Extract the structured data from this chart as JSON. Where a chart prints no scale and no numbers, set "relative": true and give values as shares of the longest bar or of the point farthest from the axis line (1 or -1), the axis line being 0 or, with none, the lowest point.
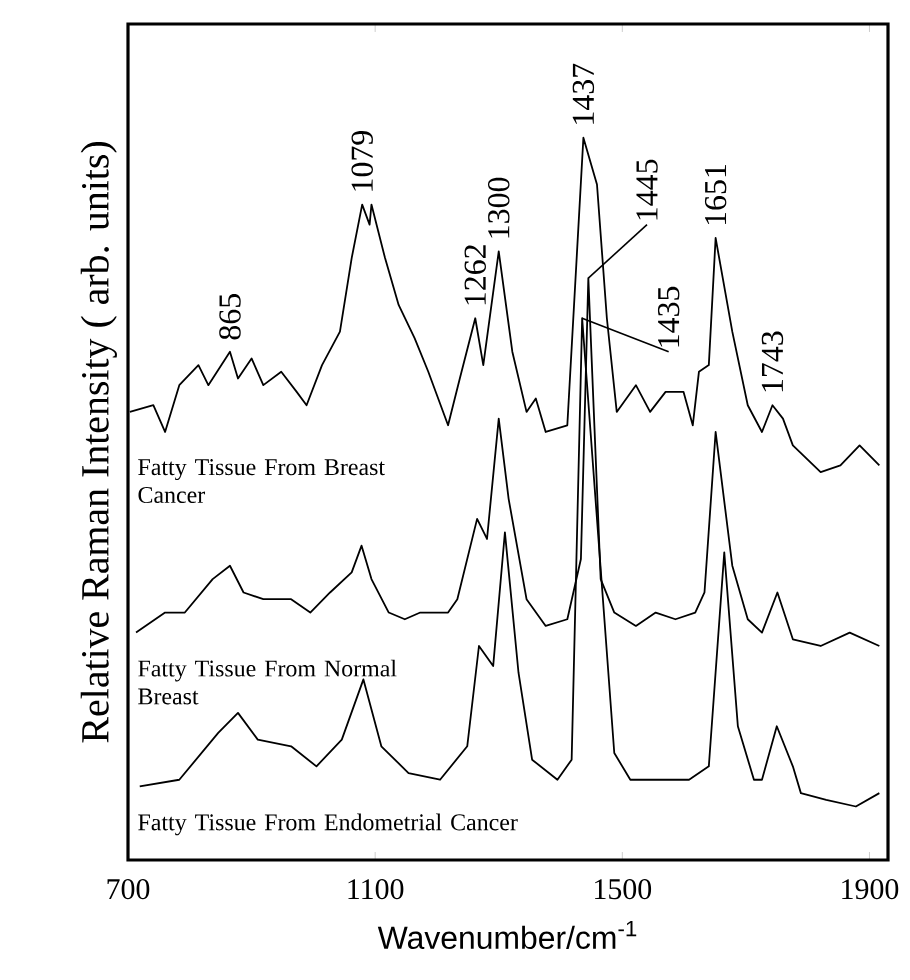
{
  "chart_data": {
    "type": "line",
    "relative": true,
    "xlabel": "Wavenumber/cm$^{-1}$",
    "ylabel": "Relative Raman Intensity ( arb. units)",
    "xlim": [
      700,
      1930
    ],
    "xticks": [
      700,
      1100,
      1500,
      1900
    ],
    "series": [
      {
        "name": "Fatty Tissue From Breast Cancer",
        "color": "#000000",
        "x": [
          703,
          741,
          760,
          783,
          814,
          830,
          865,
          878,
          900,
          919,
          948,
          973,
          989,
          1014,
          1043,
          1062,
          1079,
          1091,
          1094,
          1116,
          1138,
          1164,
          1186,
          1218,
          1237,
          1262,
          1275,
          1300,
          1322,
          1345,
          1360,
          1376,
          1411,
          1437,
          1459,
          1475,
          1491,
          1522,
          1545,
          1570,
          1599,
          1614,
          1624,
          1640,
          1651,
          1678,
          1703,
          1726,
          1743,
          1760,
          1776,
          1821,
          1853,
          1884,
          1916
        ],
        "values": [
          0.59,
          0.6,
          0.56,
          0.63,
          0.66,
          0.63,
          0.68,
          0.64,
          0.67,
          0.63,
          0.65,
          0.62,
          0.6,
          0.66,
          0.71,
          0.82,
          0.9,
          0.87,
          0.9,
          0.82,
          0.75,
          0.7,
          0.65,
          0.57,
          0.64,
          0.73,
          0.66,
          0.83,
          0.68,
          0.59,
          0.61,
          0.56,
          0.57,
          1.0,
          0.93,
          0.73,
          0.59,
          0.63,
          0.59,
          0.62,
          0.62,
          0.57,
          0.65,
          0.66,
          0.85,
          0.71,
          0.6,
          0.56,
          0.6,
          0.58,
          0.54,
          0.5,
          0.51,
          0.54,
          0.51
        ]
      },
      {
        "name": "Fatty Tissue From Normal Breast",
        "color": "#000000",
        "x": [
          713,
          760,
          792,
          837,
          865,
          887,
          919,
          964,
          995,
          1027,
          1062,
          1078,
          1094,
          1122,
          1148,
          1173,
          1218,
          1233,
          1265,
          1281,
          1300,
          1316,
          1345,
          1376,
          1411,
          1433,
          1445,
          1465,
          1487,
          1522,
          1554,
          1586,
          1618,
          1633,
          1651,
          1678,
          1703,
          1726,
          1751,
          1776,
          1821,
          1868,
          1916
        ],
        "values": [
          0.26,
          0.29,
          0.29,
          0.34,
          0.36,
          0.32,
          0.31,
          0.31,
          0.29,
          0.32,
          0.35,
          0.39,
          0.34,
          0.29,
          0.28,
          0.29,
          0.29,
          0.31,
          0.43,
          0.4,
          0.58,
          0.46,
          0.31,
          0.27,
          0.28,
          0.37,
          0.79,
          0.34,
          0.29,
          0.27,
          0.29,
          0.28,
          0.29,
          0.32,
          0.56,
          0.36,
          0.28,
          0.26,
          0.32,
          0.25,
          0.24,
          0.26,
          0.24
        ]
      },
      {
        "name": "Fatty Tissue From Endometrial Cancer",
        "color": "#000000",
        "x": [
          719,
          783,
          846,
          878,
          910,
          964,
          1005,
          1046,
          1081,
          1110,
          1154,
          1205,
          1249,
          1268,
          1291,
          1310,
          1332,
          1354,
          1395,
          1418,
          1435,
          1487,
          1513,
          1554,
          1608,
          1640,
          1665,
          1687,
          1713,
          1726,
          1750,
          1776,
          1789,
          1830,
          1878,
          1916
        ],
        "values": [
          0.03,
          0.04,
          0.11,
          0.14,
          0.1,
          0.09,
          0.06,
          0.1,
          0.19,
          0.09,
          0.05,
          0.04,
          0.09,
          0.24,
          0.21,
          0.41,
          0.2,
          0.07,
          0.04,
          0.07,
          0.73,
          0.08,
          0.04,
          0.04,
          0.04,
          0.06,
          0.38,
          0.12,
          0.04,
          0.04,
          0.12,
          0.06,
          0.02,
          0.01,
          0.0,
          0.02
        ]
      }
    ],
    "annotations": [
      {
        "text": "865",
        "x": 865,
        "y": 0.68
      },
      {
        "text": "1079",
        "x": 1079,
        "y": 0.9
      },
      {
        "text": "1262",
        "x": 1262,
        "y": 0.73
      },
      {
        "text": "1300",
        "x": 1300,
        "y": 0.83
      },
      {
        "text": "1437",
        "x": 1437,
        "y": 1.0
      },
      {
        "text": "1445",
        "x": 1445,
        "y": 0.79
      },
      {
        "text": "1651",
        "x": 1651,
        "y": 0.85
      },
      {
        "text": "1435",
        "x": 1435,
        "y": 0.73
      },
      {
        "text": "1743",
        "x": 1743,
        "y": 0.6
      }
    ]
  }
}
